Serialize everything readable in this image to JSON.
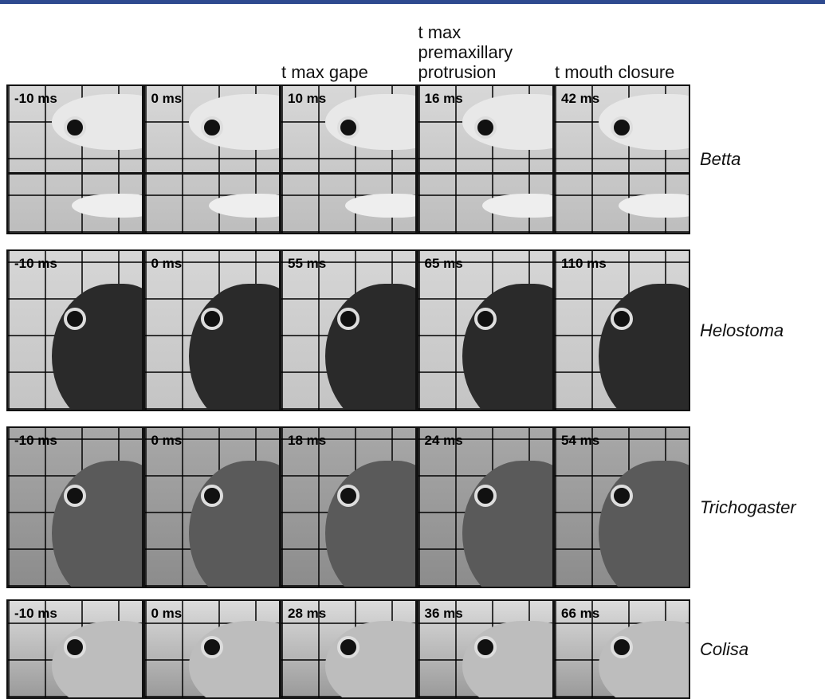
{
  "column_headers": [
    "t max gape",
    "t max premaxillary protrusion",
    "t mouth closure"
  ],
  "rows": [
    {
      "species": "Betta",
      "frames": [
        "-10 ms",
        "0 ms",
        "10 ms",
        "16 ms",
        "42 ms"
      ]
    },
    {
      "species": "Helostoma",
      "frames": [
        "-10 ms",
        "0 ms",
        "55 ms",
        "65 ms",
        "110 ms"
      ]
    },
    {
      "species": "Trichogaster",
      "frames": [
        "-10 ms",
        "0 ms",
        "18 ms",
        "24 ms",
        "54 ms"
      ]
    },
    {
      "species": "Colisa",
      "frames": [
        "-10 ms",
        "0 ms",
        "28 ms",
        "36 ms",
        "66 ms"
      ]
    }
  ]
}
